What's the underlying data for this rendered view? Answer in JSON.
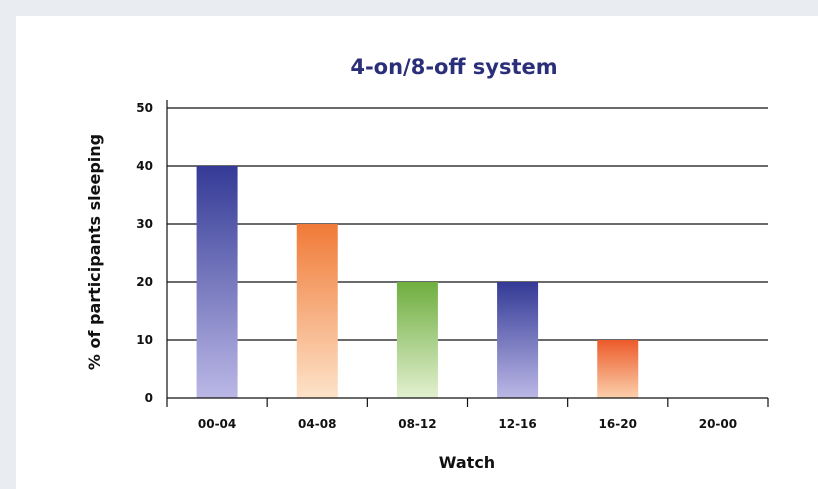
{
  "chart_data": {
    "type": "bar",
    "title": "4-on/8-off system",
    "xlabel": "Watch",
    "ylabel": "% of participants sleeping",
    "categories": [
      "00-04",
      "04-08",
      "08-12",
      "12-16",
      "16-20",
      "20-00"
    ],
    "values": [
      40,
      30,
      20,
      20,
      10,
      0
    ],
    "ylim": [
      0,
      50
    ],
    "yticks": [
      "0",
      "10",
      "20",
      "30",
      "40",
      "50"
    ],
    "grid": true,
    "legend": "none",
    "bar_colors": [
      {
        "top": "#343a96",
        "bottom": "#bbb8e6"
      },
      {
        "top": "#f07a37",
        "bottom": "#fde3c9"
      },
      {
        "top": "#6fae3f",
        "bottom": "#e2f0d0"
      },
      {
        "top": "#343a96",
        "bottom": "#bbb8e6"
      },
      {
        "top": "#ec5b2a",
        "bottom": "#fbd0ac"
      },
      {
        "top": "#343a96",
        "bottom": "#bbb8e6"
      }
    ],
    "title_color": "#2b2f7a",
    "gridline_color": "#111111"
  }
}
